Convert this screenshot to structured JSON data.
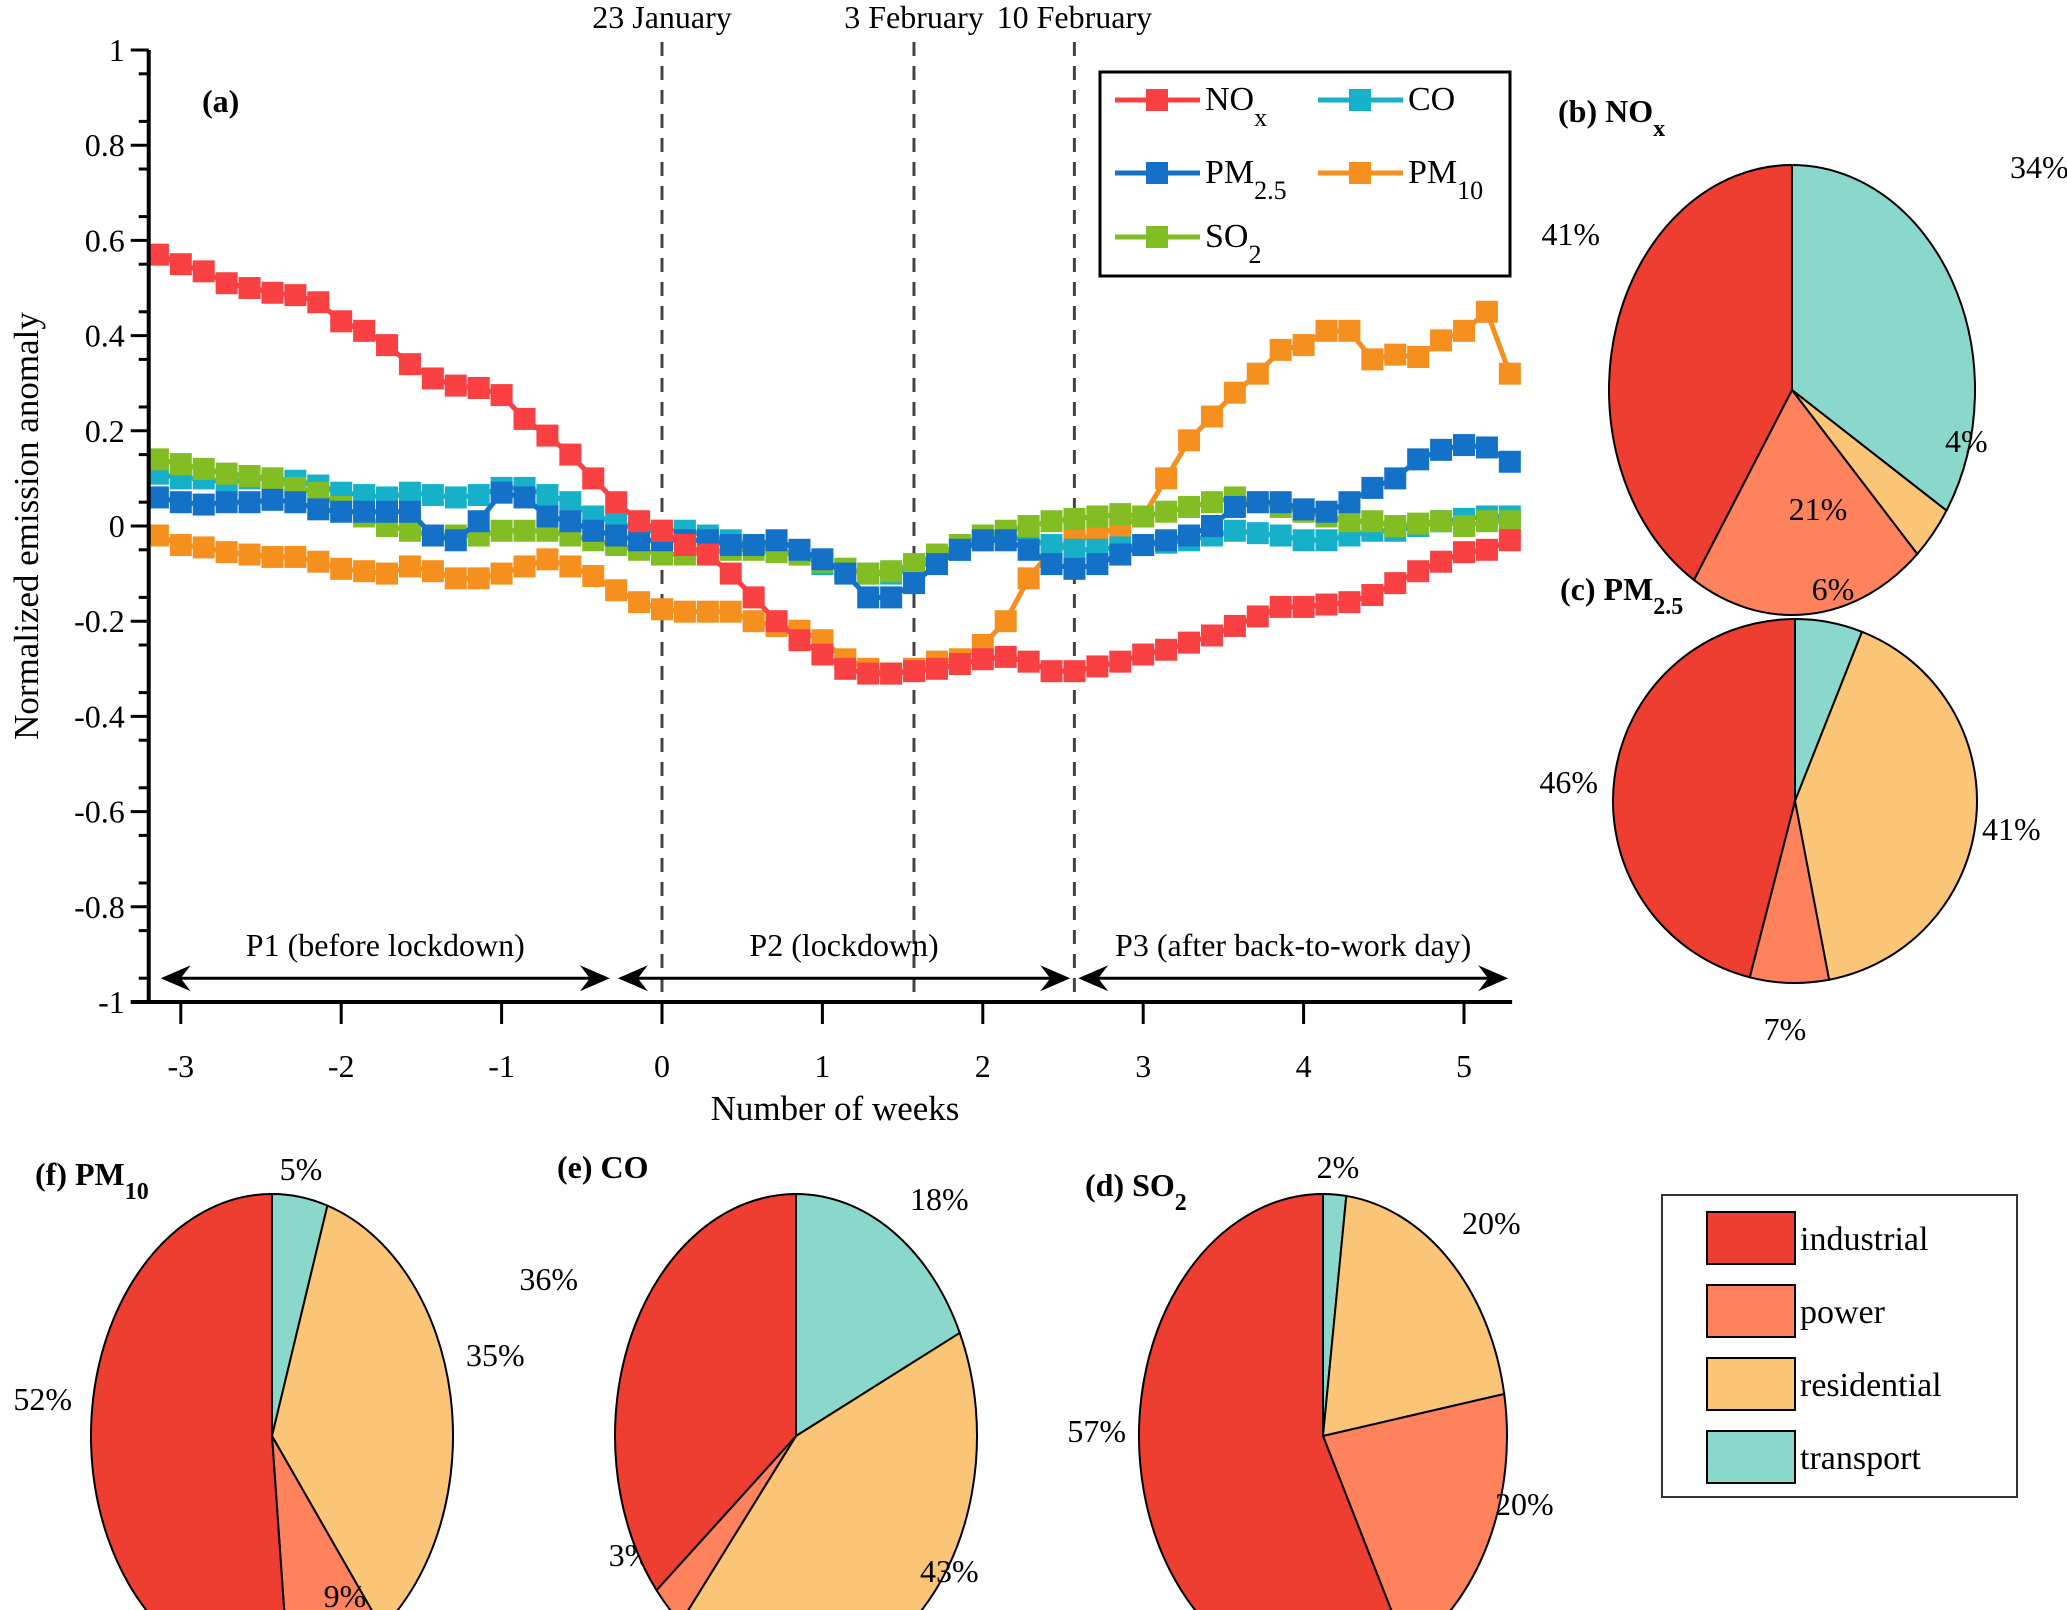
{
  "chart_data": [
    {
      "id": "a",
      "type": "line",
      "panel_label": "(a)",
      "title": "",
      "xlabel": "Number of weeks",
      "ylabel": "Normalized emission anomaly",
      "xlim": [
        -3.2,
        5.3
      ],
      "ylim": [
        -1,
        1
      ],
      "xticks": [
        -3,
        -2,
        -1,
        0,
        1,
        2,
        3,
        4,
        5
      ],
      "yticks": [
        -1,
        -0.8,
        -0.6,
        -0.4,
        -0.2,
        0,
        0.2,
        0.4,
        0.6,
        0.8,
        1
      ],
      "ytick_labels": [
        "-1",
        "-0.8",
        "-0.6",
        "-0.4",
        "-0.2",
        "0",
        "0.2",
        "0.4",
        "0.6",
        "0.8",
        "1"
      ],
      "xtick_labels": [
        "-3",
        "-2",
        "-1",
        "0",
        "1",
        "2",
        "3",
        "4",
        "5"
      ],
      "x_note": "daily points, x = day/7, day -22 to 37",
      "x_days_start": -22,
      "x_days_end": 37,
      "grid": false,
      "legend_position": "top-right",
      "series": [
        {
          "name": "NOx",
          "label_main": "NO",
          "label_sub": "x",
          "color": "#f94144",
          "values": [
            0.57,
            0.55,
            0.535,
            0.51,
            0.5,
            0.49,
            0.485,
            0.47,
            0.43,
            0.41,
            0.38,
            0.34,
            0.31,
            0.295,
            0.29,
            0.275,
            0.225,
            0.19,
            0.15,
            0.1,
            0.05,
            0.01,
            -0.01,
            -0.04,
            -0.06,
            -0.1,
            -0.15,
            -0.2,
            -0.24,
            -0.27,
            -0.3,
            -0.31,
            -0.31,
            -0.305,
            -0.3,
            -0.29,
            -0.28,
            -0.275,
            -0.285,
            -0.305,
            -0.305,
            -0.295,
            -0.285,
            -0.27,
            -0.26,
            -0.245,
            -0.23,
            -0.21,
            -0.19,
            -0.17,
            -0.17,
            -0.165,
            -0.16,
            -0.145,
            -0.12,
            -0.095,
            -0.075,
            -0.055,
            -0.05,
            -0.03
          ]
        },
        {
          "name": "CO",
          "label_main": "CO",
          "label_sub": "",
          "color": "#17b0c9",
          "values": [
            0.11,
            0.1,
            0.1,
            0.09,
            0.1,
            0.1,
            0.095,
            0.085,
            0.07,
            0.065,
            0.06,
            0.07,
            0.065,
            0.06,
            0.065,
            0.08,
            0.08,
            0.065,
            0.05,
            0.02,
            0.01,
            -0.01,
            -0.01,
            -0.01,
            -0.02,
            -0.03,
            -0.04,
            -0.05,
            -0.06,
            -0.08,
            -0.09,
            -0.1,
            -0.1,
            -0.09,
            -0.07,
            -0.05,
            -0.03,
            -0.02,
            -0.03,
            -0.04,
            -0.05,
            -0.05,
            -0.045,
            -0.04,
            -0.035,
            -0.03,
            -0.02,
            -0.01,
            -0.015,
            -0.02,
            -0.03,
            -0.03,
            -0.02,
            -0.01,
            -0.01,
            0.0,
            0.01,
            0.015,
            0.02,
            0.02
          ]
        },
        {
          "name": "PM2.5",
          "label_main": "PM",
          "label_sub": "2.5",
          "color": "#1372c8",
          "values": [
            0.06,
            0.05,
            0.045,
            0.05,
            0.05,
            0.055,
            0.05,
            0.035,
            0.03,
            0.03,
            0.03,
            0.03,
            -0.02,
            -0.03,
            0.01,
            0.07,
            0.06,
            0.02,
            0.01,
            -0.01,
            -0.02,
            -0.03,
            -0.03,
            -0.03,
            -0.03,
            -0.04,
            -0.04,
            -0.03,
            -0.05,
            -0.07,
            -0.1,
            -0.15,
            -0.15,
            -0.12,
            -0.08,
            -0.05,
            -0.03,
            -0.03,
            -0.05,
            -0.08,
            -0.09,
            -0.08,
            -0.06,
            -0.04,
            -0.03,
            -0.02,
            0.0,
            0.04,
            0.05,
            0.05,
            0.035,
            0.03,
            0.05,
            0.08,
            0.1,
            0.14,
            0.16,
            0.17,
            0.165,
            0.135
          ]
        },
        {
          "name": "PM10",
          "label_main": "PM",
          "label_sub": "10",
          "color": "#f5901e",
          "values": [
            -0.02,
            -0.04,
            -0.045,
            -0.055,
            -0.06,
            -0.065,
            -0.065,
            -0.075,
            -0.09,
            -0.095,
            -0.1,
            -0.085,
            -0.095,
            -0.11,
            -0.11,
            -0.1,
            -0.085,
            -0.07,
            -0.085,
            -0.105,
            -0.135,
            -0.16,
            -0.175,
            -0.18,
            -0.18,
            -0.18,
            -0.2,
            -0.21,
            -0.22,
            -0.24,
            -0.28,
            -0.3,
            -0.31,
            -0.3,
            -0.285,
            -0.28,
            -0.25,
            -0.2,
            -0.11,
            -0.05,
            -0.03,
            -0.02,
            0.0,
            0.02,
            0.1,
            0.18,
            0.23,
            0.28,
            0.32,
            0.37,
            0.38,
            0.41,
            0.41,
            0.35,
            0.36,
            0.355,
            0.39,
            0.41,
            0.45,
            0.32
          ]
        },
        {
          "name": "SO2",
          "label_main": "SO",
          "label_sub": "2",
          "color": "#82bd23",
          "values": [
            0.14,
            0.13,
            0.12,
            0.11,
            0.105,
            0.1,
            0.08,
            0.07,
            0.04,
            0.02,
            0.0,
            -0.01,
            -0.02,
            -0.02,
            -0.02,
            -0.01,
            -0.01,
            -0.01,
            -0.02,
            -0.03,
            -0.04,
            -0.05,
            -0.06,
            -0.06,
            -0.055,
            -0.05,
            -0.05,
            -0.055,
            -0.06,
            -0.075,
            -0.09,
            -0.1,
            -0.095,
            -0.08,
            -0.06,
            -0.04,
            -0.02,
            -0.01,
            0.0,
            0.01,
            0.015,
            0.02,
            0.025,
            0.02,
            0.03,
            0.04,
            0.05,
            0.06,
            0.05,
            0.04,
            0.03,
            0.02,
            0.01,
            0.01,
            0.0,
            0.005,
            0.01,
            0.0,
            0.01,
            0.01
          ]
        }
      ],
      "vlines": [
        {
          "x": 0,
          "label": "23 January"
        },
        {
          "x": 1.571,
          "label": "3 February"
        },
        {
          "x": 2.571,
          "label": "10 February"
        }
      ],
      "periods": [
        {
          "label": "P1 (before lockdown)",
          "from": -3.15,
          "to": -0.3
        },
        {
          "label": "P2 (lockdown)",
          "from": -0.3,
          "to": 2.57
        },
        {
          "label": "P3 (after back-to-work day)",
          "from": 2.57,
          "to": 5.3
        }
      ],
      "period_arrow_y": -0.95
    },
    {
      "id": "b",
      "type": "pie",
      "panel_label": "(b)",
      "title_main": "NO",
      "title_sub": "x",
      "slices": [
        {
          "category": "transport",
          "value": 34,
          "label": "34%"
        },
        {
          "category": "residential",
          "value": 4,
          "label": "4%"
        },
        {
          "category": "power",
          "value": 21,
          "label": "21%"
        },
        {
          "category": "industrial",
          "value": 41,
          "label": "41%"
        }
      ]
    },
    {
      "id": "c",
      "type": "pie",
      "panel_label": "(c)",
      "title_main": "PM",
      "title_sub": "2.5",
      "slices": [
        {
          "category": "transport",
          "value": 6,
          "label": "6%"
        },
        {
          "category": "residential",
          "value": 41,
          "label": "41%"
        },
        {
          "category": "power",
          "value": 7,
          "label": "7%"
        },
        {
          "category": "industrial",
          "value": 46,
          "label": "46%"
        }
      ]
    },
    {
      "id": "d",
      "type": "pie",
      "panel_label": "(d)",
      "title_main": "SO",
      "title_sub": "2",
      "slices": [
        {
          "category": "transport",
          "value": 2,
          "label": "2%"
        },
        {
          "category": "residential",
          "value": 20,
          "label": "20%"
        },
        {
          "category": "power",
          "value": 20,
          "label": "20%"
        },
        {
          "category": "industrial",
          "value": 57,
          "label": "57%"
        }
      ]
    },
    {
      "id": "e",
      "type": "pie",
      "panel_label": "(e)",
      "title_main": "CO",
      "title_sub": "",
      "slices": [
        {
          "category": "transport",
          "value": 18,
          "label": "18%"
        },
        {
          "category": "residential",
          "value": 43,
          "label": "43%"
        },
        {
          "category": "power",
          "value": 3,
          "label": "3%"
        },
        {
          "category": "industrial",
          "value": 36,
          "label": "36%"
        }
      ]
    },
    {
      "id": "f",
      "type": "pie",
      "panel_label": "(f)",
      "title_main": "PM",
      "title_sub": "10",
      "slices": [
        {
          "category": "transport",
          "value": 5,
          "label": "5%"
        },
        {
          "category": "residential",
          "value": 35,
          "label": "35%"
        },
        {
          "category": "power",
          "value": 9,
          "label": "9%"
        },
        {
          "category": "industrial",
          "value": 52,
          "label": "52%"
        }
      ]
    }
  ],
  "sector_legend": [
    {
      "category": "industrial",
      "label": "industrial",
      "color": "#ee3d31"
    },
    {
      "category": "power",
      "label": "power",
      "color": "#fe825c"
    },
    {
      "category": "residential",
      "label": "residential",
      "color": "#fac577"
    },
    {
      "category": "transport",
      "label": "transport",
      "color": "#8ad8cc"
    }
  ]
}
